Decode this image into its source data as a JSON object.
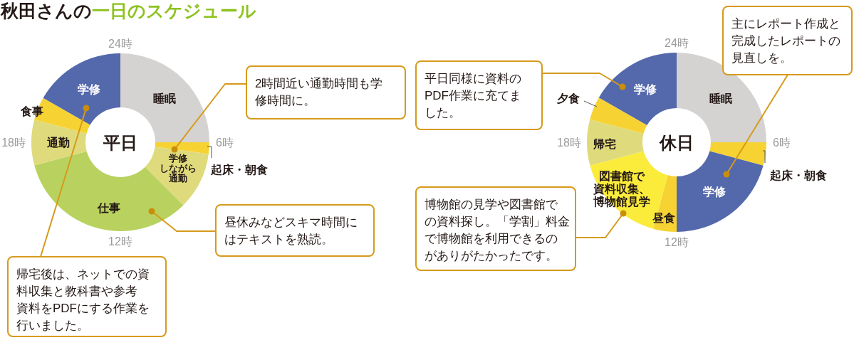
{
  "chart_data": [
    {
      "type": "donut",
      "title": "秋田さんの",
      "subtitle": "一日のスケジュール",
      "categories": [
        "睡眠",
        "起床・朝食",
        "学修しながら通勤",
        "仕事",
        "通勤",
        "食事",
        "学修"
      ],
      "values": [
        25,
        2.1,
        10.4,
        33.3,
        8.3,
        4.2,
        16.7
      ],
      "colors": [
        "#d4d3d2",
        "#f6d333",
        "#dfdb7c",
        "#b9d25f",
        "#dfdb7c",
        "#f6d333",
        "#5468ac"
      ],
      "annotations": [
        "平日",
        "24時",
        "6時",
        "12時",
        "18時",
        "2時間近い通勤時間も学修時間に。",
        "昼休みなどスキマ時間にはテキストを熟読。",
        "帰宅後は、ネットでの資料収集と教科書や参考資料をPDFにする作業を行いました。"
      ]
    },
    {
      "type": "donut",
      "categories": [
        "睡眠",
        "起床・朝食",
        "学修",
        "昼食",
        "図書館で資料収集、博物館見学",
        "帰宅",
        "夕食",
        "学修"
      ],
      "values": [
        25,
        4.2,
        20.8,
        4.2,
        16.6,
        8.3,
        4.2,
        16.7
      ],
      "colors": [
        "#d4d3d2",
        "#f6d333",
        "#5468ac",
        "#f6d333",
        "#fbec3c",
        "#dfdb7c",
        "#f6d333",
        "#5468ac"
      ],
      "annotations": [
        "休日",
        "24時",
        "6時",
        "12時",
        "18時",
        "主にレポート作成と完成したレポートの見直しを。",
        "平日同様に資料のPDF作業に充てました。",
        "博物館の見学や図書館での資料探し。「学割」料金で博物館を利用できるのがありがたかったです。"
      ]
    }
  ]
}
